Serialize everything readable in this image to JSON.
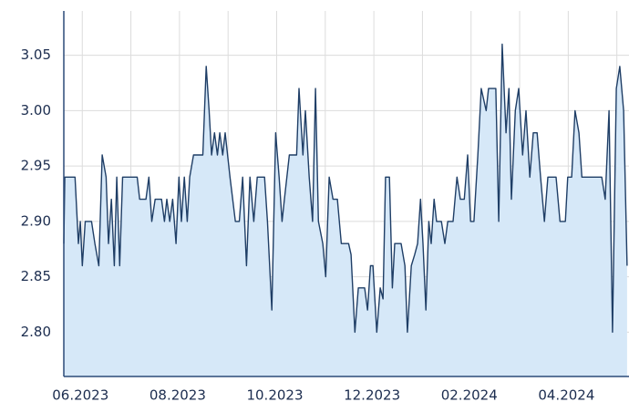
{
  "chart_data": {
    "type": "area",
    "color": "#1f3e66",
    "fill": "#d6e8f8",
    "grid": true,
    "xlim": [
      -0.38,
      11.25
    ],
    "xticks": [
      {
        "value": 0,
        "label": "06.2023"
      },
      {
        "value": 2,
        "label": "08.2023"
      },
      {
        "value": 4,
        "label": "10.2023"
      },
      {
        "value": 6,
        "label": "12.2023"
      },
      {
        "value": 8,
        "label": "02.2024"
      },
      {
        "value": 10,
        "label": "04.2024"
      }
    ],
    "xgrid": [
      1,
      3,
      5,
      7,
      9,
      11
    ],
    "ylim": [
      2.76,
      3.09
    ],
    "yticks": [
      3.05,
      {
        "value": 3.0,
        "label": "3.00"
      },
      2.95,
      {
        "value": 2.9,
        "label": "2.90"
      },
      2.85,
      {
        "value": 2.8,
        "label": "2.80"
      }
    ],
    "x": [
      -0.38,
      -0.36,
      -0.15,
      -0.08,
      -0.04,
      0,
      0.06,
      0.19,
      0.26,
      0.34,
      0.41,
      0.49,
      0.54,
      0.6,
      0.66,
      0.71,
      0.77,
      0.83,
      1.13,
      1.18,
      1.31,
      1.37,
      1.43,
      1.5,
      1.63,
      1.69,
      1.74,
      1.8,
      1.86,
      1.93,
      1.99,
      2.04,
      2.1,
      2.16,
      2.21,
      2.29,
      2.48,
      2.55,
      2.61,
      2.66,
      2.72,
      2.78,
      2.83,
      2.89,
      2.94,
      3.04,
      3.15,
      3.23,
      3.3,
      3.38,
      3.45,
      3.53,
      3.6,
      3.75,
      3.81,
      3.9,
      3.98,
      4.05,
      4.11,
      4.16,
      4.26,
      4.41,
      4.46,
      4.54,
      4.59,
      4.67,
      4.74,
      4.8,
      4.86,
      4.95,
      5.01,
      5.08,
      5.16,
      5.25,
      5.33,
      5.48,
      5.53,
      5.61,
      5.68,
      5.81,
      5.87,
      5.93,
      5.98,
      6.06,
      6.13,
      6.19,
      6.24,
      6.32,
      6.38,
      6.43,
      6.56,
      6.64,
      6.69,
      6.77,
      6.84,
      6.9,
      6.96,
      7.01,
      7.07,
      7.13,
      7.18,
      7.24,
      7.29,
      7.39,
      7.46,
      7.52,
      7.63,
      7.71,
      7.78,
      7.86,
      7.93,
      7.99,
      8.06,
      8.14,
      8.21,
      8.31,
      8.36,
      8.51,
      8.57,
      8.64,
      8.72,
      8.78,
      8.83,
      8.91,
      8.98,
      9.06,
      9.13,
      9.21,
      9.28,
      9.36,
      9.43,
      9.51,
      9.58,
      9.75,
      9.83,
      9.94,
      9.99,
      10.07,
      10.14,
      10.22,
      10.28,
      10.69,
      10.76,
      10.84,
      10.91,
      10.99,
      11.06,
      11.14,
      11.21
    ],
    "values": [
      2.88,
      2.94,
      2.94,
      2.88,
      2.9,
      2.86,
      2.9,
      2.9,
      2.88,
      2.86,
      2.96,
      2.94,
      2.88,
      2.92,
      2.86,
      2.94,
      2.86,
      2.94,
      2.94,
      2.92,
      2.92,
      2.94,
      2.9,
      2.92,
      2.92,
      2.9,
      2.92,
      2.9,
      2.92,
      2.88,
      2.94,
      2.9,
      2.94,
      2.9,
      2.94,
      2.96,
      2.96,
      3.04,
      3.0,
      2.96,
      2.98,
      2.96,
      2.98,
      2.96,
      2.98,
      2.94,
      2.9,
      2.9,
      2.94,
      2.86,
      2.94,
      2.9,
      2.94,
      2.94,
      2.9,
      2.82,
      2.98,
      2.94,
      2.9,
      2.92,
      2.96,
      2.96,
      3.02,
      2.96,
      3.0,
      2.94,
      2.9,
      3.02,
      2.9,
      2.88,
      2.85,
      2.94,
      2.92,
      2.92,
      2.88,
      2.88,
      2.87,
      2.8,
      2.84,
      2.84,
      2.82,
      2.86,
      2.86,
      2.8,
      2.84,
      2.83,
      2.94,
      2.94,
      2.84,
      2.88,
      2.88,
      2.86,
      2.8,
      2.86,
      2.87,
      2.88,
      2.92,
      2.88,
      2.82,
      2.9,
      2.88,
      2.92,
      2.9,
      2.9,
      2.88,
      2.9,
      2.9,
      2.94,
      2.92,
      2.92,
      2.96,
      2.9,
      2.9,
      2.96,
      3.02,
      3.0,
      3.02,
      3.02,
      2.9,
      3.06,
      2.98,
      3.02,
      2.92,
      3.0,
      3.02,
      2.96,
      3.0,
      2.94,
      2.98,
      2.98,
      2.94,
      2.9,
      2.94,
      2.94,
      2.9,
      2.9,
      2.94,
      2.94,
      3.0,
      2.98,
      2.94,
      2.94,
      2.92,
      3.0,
      2.8,
      3.02,
      3.04,
      3.0,
      2.86
    ]
  }
}
